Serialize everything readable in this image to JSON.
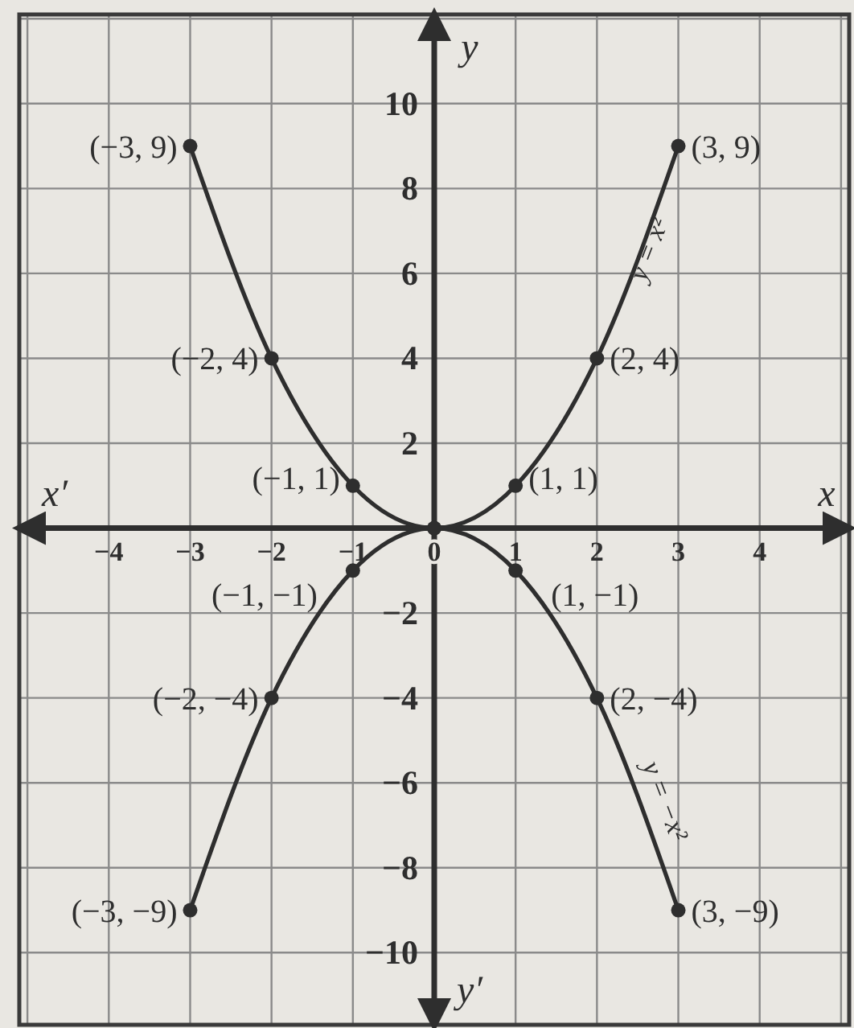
{
  "chart_data": {
    "type": "line",
    "xlabel": "x",
    "ylabel": "y",
    "x": [
      -3,
      -2,
      -1,
      0,
      1,
      2,
      3
    ],
    "series": [
      {
        "name": "y = x²",
        "color": "#2e2e2e",
        "values": [
          9,
          4,
          1,
          0,
          1,
          4,
          9
        ]
      },
      {
        "name": "y = −x²",
        "color": "#2e2e2e",
        "values": [
          -9,
          -4,
          -1,
          0,
          -1,
          -4,
          -9
        ]
      }
    ],
    "xlim": [
      -5.1,
      5.1
    ],
    "ylim": [
      -11.7,
      12.1
    ],
    "xticks": [
      {
        "value": -5,
        "label": null
      },
      {
        "value": -4,
        "label": "−4"
      },
      {
        "value": -3,
        "label": "−3"
      },
      {
        "value": -2,
        "label": "−2"
      },
      {
        "value": -1,
        "label": "−1"
      },
      0,
      1,
      2,
      3,
      4,
      {
        "value": 5,
        "label": null
      }
    ],
    "yticks": [
      {
        "value": -10,
        "label": "−10"
      },
      {
        "value": -8,
        "label": "−8"
      },
      {
        "value": -6,
        "label": "−6"
      },
      {
        "value": -4,
        "label": "−4"
      },
      {
        "value": -2,
        "label": "−2"
      },
      2,
      4,
      6,
      8,
      10,
      {
        "value": 12,
        "label": null
      }
    ],
    "grid": true,
    "marker": "circle",
    "line_style": "solid",
    "annotations": [
      "x′",
      "y′",
      {
        "text": "(−3, 9)",
        "x": -3,
        "y": 9
      },
      {
        "text": "(−2, 4)",
        "x": -2,
        "y": 4
      },
      {
        "text": "(−1, 1)",
        "x": -1,
        "y": 1
      },
      {
        "text": "(3, 9)",
        "x": 3,
        "y": 9
      },
      {
        "text": "(2, 4)",
        "x": 2,
        "y": 4
      },
      {
        "text": "(1, 1)",
        "x": 1,
        "y": 1
      },
      {
        "text": "(−1, −1)",
        "x": -1,
        "y": -1
      },
      {
        "text": "(−2, −4)",
        "x": -2,
        "y": -4
      },
      {
        "text": "(−3, −9)",
        "x": -3,
        "y": -9
      },
      {
        "text": "(1, −1)",
        "x": 1,
        "y": -1
      },
      {
        "text": "(2, −4)",
        "x": 2,
        "y": -4
      },
      {
        "text": "(3, −9)",
        "x": 3,
        "y": -9
      }
    ]
  }
}
